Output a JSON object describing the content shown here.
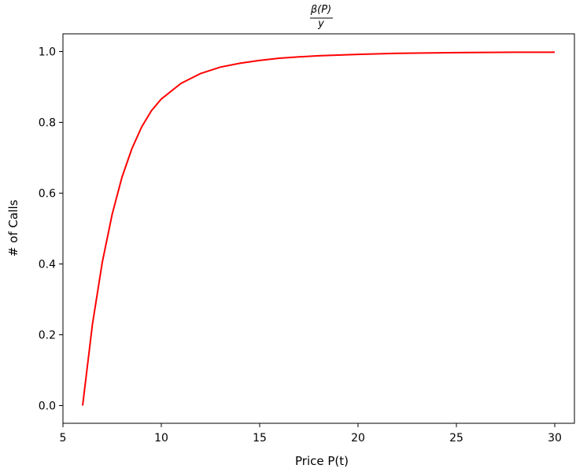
{
  "chart_data": {
    "type": "line",
    "title": {
      "numerator": "β(P)",
      "denominator": "y"
    },
    "xlabel": "Price P(t)",
    "ylabel": "# of Calls",
    "xlim": [
      5,
      31
    ],
    "ylim": [
      -0.05,
      1.05
    ],
    "xticks": [
      5,
      10,
      15,
      20,
      25,
      30
    ],
    "xtick_labels": [
      "5",
      "10",
      "15",
      "20",
      "25",
      "30"
    ],
    "yticks": [
      0.0,
      0.2,
      0.4,
      0.6,
      0.8,
      1.0
    ],
    "ytick_labels": [
      "0.0",
      "0.2",
      "0.4",
      "0.6",
      "0.8",
      "1.0"
    ],
    "grid": false,
    "series": [
      {
        "color": "#ff0000",
        "x": [
          6,
          6.5,
          7,
          7.5,
          8,
          8.5,
          9,
          9.5,
          10,
          11,
          12,
          13,
          14,
          15,
          16,
          17,
          18,
          20,
          22,
          25,
          28,
          30
        ],
        "y": [
          0.0,
          0.23,
          0.405,
          0.54,
          0.645,
          0.725,
          0.787,
          0.833,
          0.866,
          0.91,
          0.938,
          0.956,
          0.967,
          0.975,
          0.981,
          0.985,
          0.988,
          0.992,
          0.995,
          0.997,
          0.998,
          0.998
        ]
      }
    ]
  }
}
